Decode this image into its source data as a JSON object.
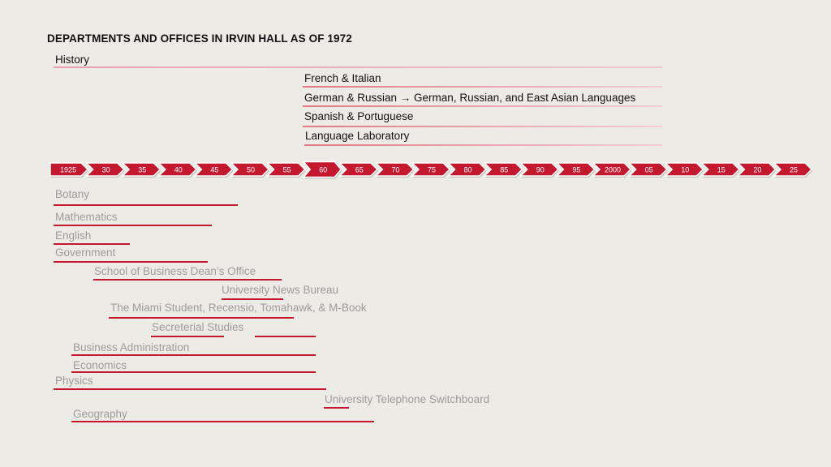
{
  "title": "DEPARTMENTS AND OFFICES IN IRVIN HALL AS OF 1972",
  "colors": {
    "accent": "#c4182f",
    "background": "#edebe5"
  },
  "timeline": {
    "years": [
      "1925",
      "30",
      "35",
      "40",
      "45",
      "50",
      "55",
      "60",
      "65",
      "70",
      "75",
      "80",
      "85",
      "90",
      "95",
      "2000",
      "05",
      "10",
      "15",
      "20",
      "25"
    ],
    "highlight": "60"
  },
  "current_departments": [
    {
      "label": "History"
    },
    {
      "label": "French & Italian"
    },
    {
      "label": "German & Russian → German, Russian, and East Asian Languages"
    },
    {
      "label": "Spanish & Portuguese"
    },
    {
      "label": "Language Laboratory"
    }
  ],
  "former_departments": [
    {
      "label": "Botany"
    },
    {
      "label": "Mathematics"
    },
    {
      "label": "English"
    },
    {
      "label": "Government"
    },
    {
      "label": "School of Business Dean’s Office"
    },
    {
      "label": "University News Bureau"
    },
    {
      "label": "The Miami Student, Recensio, Tomahawk, & M-Book"
    },
    {
      "label": "Secreterial Studies"
    },
    {
      "label": "Business Administration"
    },
    {
      "label": "Economics"
    },
    {
      "label": "Physics"
    },
    {
      "label": "University Telephone Switchboard"
    },
    {
      "label": "Geography"
    }
  ]
}
